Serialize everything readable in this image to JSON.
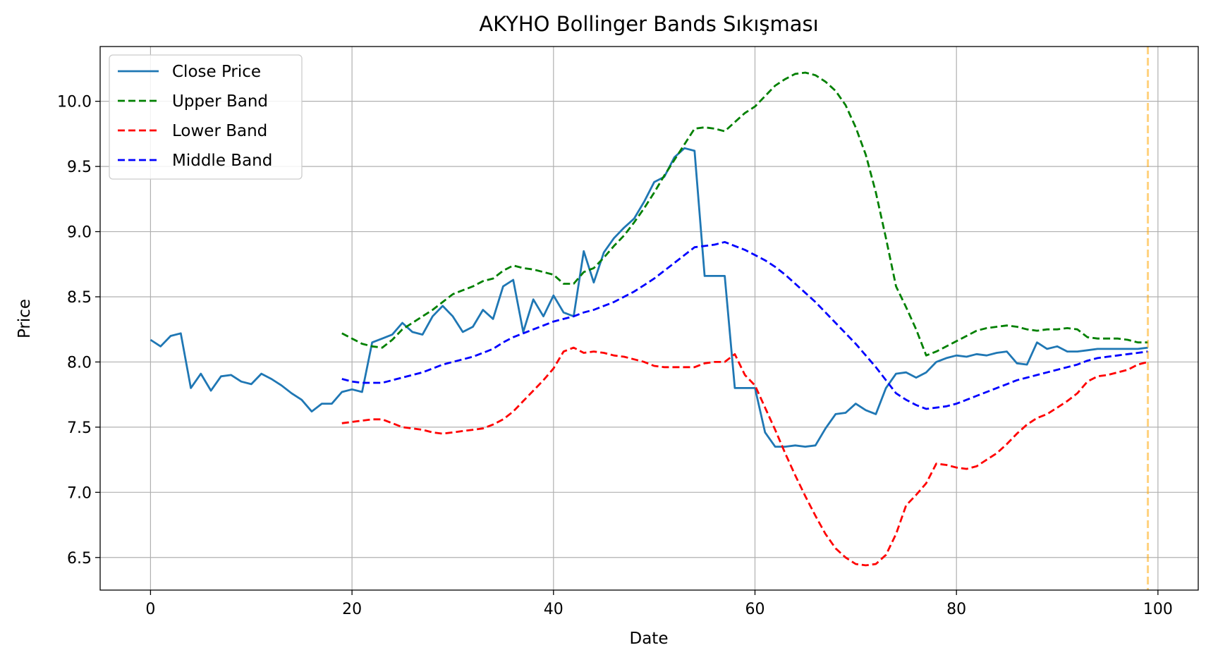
{
  "chart_data": {
    "type": "line",
    "title": "AKYHO Bollinger Bands Sıkışması",
    "xlabel": "Date",
    "ylabel": "Price",
    "xlim": [
      -5,
      104
    ],
    "ylim": [
      6.25,
      10.42
    ],
    "xticks": [
      0,
      20,
      40,
      60,
      80,
      100
    ],
    "xtick_labels": [
      "0",
      "20",
      "40",
      "60",
      "80",
      "100"
    ],
    "yticks": [
      6.5,
      7.0,
      7.5,
      8.0,
      8.5,
      9.0,
      9.5,
      10.0
    ],
    "ytick_labels": [
      "6.5",
      "7.0",
      "7.5",
      "8.0",
      "8.5",
      "9.0",
      "9.5",
      "10.0"
    ],
    "grid": true,
    "legend_position": "top-left",
    "vline": {
      "x": 99,
      "color": "#ffa500",
      "style": "dashed"
    },
    "series": [
      {
        "name": "Close Price",
        "color": "#1f77b4",
        "style": "solid",
        "x_start": 0,
        "values": [
          8.17,
          8.12,
          8.2,
          8.22,
          7.8,
          7.91,
          7.78,
          7.89,
          7.9,
          7.85,
          7.83,
          7.91,
          7.87,
          7.82,
          7.76,
          7.71,
          7.62,
          7.68,
          7.68,
          7.77,
          7.79,
          7.77,
          8.15,
          8.18,
          8.21,
          8.3,
          8.23,
          8.21,
          8.35,
          8.43,
          8.35,
          8.23,
          8.27,
          8.4,
          8.33,
          8.58,
          8.63,
          8.23,
          8.48,
          8.35,
          8.51,
          8.38,
          8.35,
          8.85,
          8.61,
          8.84,
          8.95,
          9.03,
          9.1,
          9.23,
          9.38,
          9.42,
          9.57,
          9.64,
          9.62,
          8.66,
          8.66,
          8.66,
          7.8,
          7.8,
          7.8,
          7.46,
          7.35,
          7.35,
          7.36,
          7.35,
          7.36,
          7.49,
          7.6,
          7.61,
          7.68,
          7.63,
          7.6,
          7.8,
          7.91,
          7.92,
          7.88,
          7.92,
          8.0,
          8.03,
          8.05,
          8.04,
          8.06,
          8.05,
          8.07,
          8.08,
          7.99,
          7.98,
          8.15,
          8.1,
          8.12,
          8.08,
          8.08,
          8.09,
          8.1,
          8.1,
          8.1,
          8.1,
          8.1,
          8.11
        ]
      },
      {
        "name": "Upper Band",
        "color": "#008000",
        "style": "dashed",
        "x_start": 19,
        "values": [
          8.22,
          8.18,
          8.14,
          8.12,
          8.11,
          8.17,
          8.25,
          8.3,
          8.35,
          8.4,
          8.46,
          8.52,
          8.55,
          8.58,
          8.62,
          8.64,
          8.7,
          8.74,
          8.72,
          8.71,
          8.69,
          8.67,
          8.6,
          8.6,
          8.69,
          8.72,
          8.8,
          8.89,
          8.97,
          9.07,
          9.18,
          9.3,
          9.43,
          9.55,
          9.67,
          9.79,
          9.8,
          9.79,
          9.77,
          9.84,
          9.91,
          9.96,
          10.04,
          10.12,
          10.17,
          10.21,
          10.22,
          10.2,
          10.15,
          10.08,
          9.97,
          9.8,
          9.59,
          9.3,
          8.95,
          8.58,
          8.42,
          8.25,
          8.05,
          8.08,
          8.12,
          8.16,
          8.2,
          8.24,
          8.26,
          8.27,
          8.28,
          8.27,
          8.25,
          8.24,
          8.25,
          8.25,
          8.26,
          8.25,
          8.19,
          8.18,
          8.18,
          8.18,
          8.17,
          8.15,
          8.15
        ]
      },
      {
        "name": "Lower Band",
        "color": "#ff0000",
        "style": "dashed",
        "x_start": 19,
        "values": [
          7.53,
          7.54,
          7.55,
          7.56,
          7.56,
          7.53,
          7.5,
          7.49,
          7.48,
          7.46,
          7.45,
          7.46,
          7.47,
          7.48,
          7.49,
          7.52,
          7.56,
          7.62,
          7.7,
          7.78,
          7.86,
          7.95,
          8.08,
          8.11,
          8.07,
          8.08,
          8.07,
          8.05,
          8.04,
          8.02,
          8.0,
          7.97,
          7.96,
          7.96,
          7.96,
          7.96,
          7.99,
          8.0,
          8.0,
          8.06,
          7.9,
          7.82,
          7.65,
          7.48,
          7.3,
          7.13,
          6.97,
          6.82,
          6.68,
          6.57,
          6.5,
          6.45,
          6.44,
          6.45,
          6.52,
          6.68,
          6.9,
          6.98,
          7.07,
          7.22,
          7.21,
          7.19,
          7.18,
          7.2,
          7.25,
          7.3,
          7.37,
          7.45,
          7.52,
          7.57,
          7.6,
          7.65,
          7.7,
          7.76,
          7.85,
          7.89,
          7.9,
          7.92,
          7.94,
          7.98,
          8.0
        ]
      },
      {
        "name": "Middle Band",
        "color": "#0000ff",
        "style": "dashed",
        "x_start": 19,
        "values": [
          7.87,
          7.85,
          7.84,
          7.84,
          7.84,
          7.86,
          7.88,
          7.9,
          7.92,
          7.95,
          7.98,
          8.0,
          8.02,
          8.04,
          8.07,
          8.1,
          8.15,
          8.19,
          8.22,
          8.25,
          8.28,
          8.31,
          8.33,
          8.35,
          8.38,
          8.4,
          8.43,
          8.46,
          8.5,
          8.54,
          8.59,
          8.64,
          8.7,
          8.76,
          8.82,
          8.88,
          8.89,
          8.9,
          8.92,
          8.89,
          8.86,
          8.82,
          8.78,
          8.73,
          8.67,
          8.6,
          8.53,
          8.46,
          8.38,
          8.3,
          8.22,
          8.14,
          8.05,
          7.96,
          7.86,
          7.76,
          7.71,
          7.67,
          7.64,
          7.65,
          7.66,
          7.68,
          7.71,
          7.74,
          7.77,
          7.8,
          7.83,
          7.86,
          7.88,
          7.9,
          7.92,
          7.94,
          7.96,
          7.98,
          8.01,
          8.03,
          8.04,
          8.05,
          8.06,
          8.07,
          8.08
        ]
      }
    ]
  }
}
